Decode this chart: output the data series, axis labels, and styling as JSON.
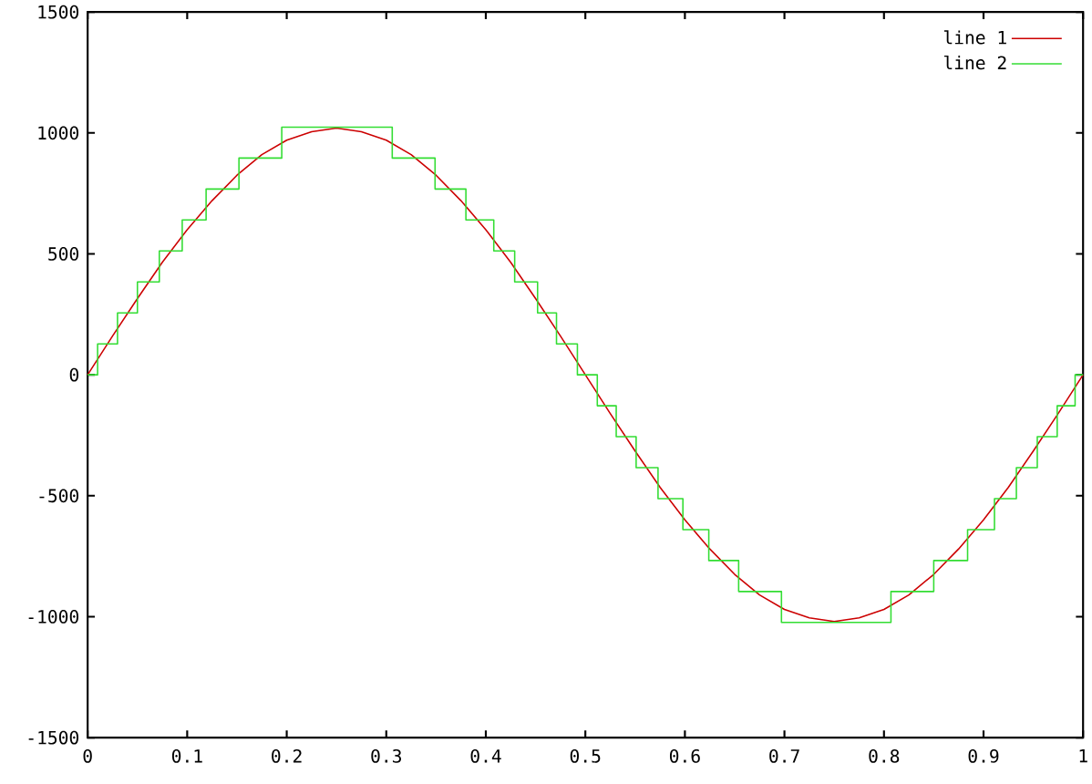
{
  "chart_data": {
    "type": "line",
    "xlim": [
      0,
      1
    ],
    "ylim": [
      -1500,
      1500
    ],
    "xticks": [
      0,
      0.1,
      0.2,
      0.3,
      0.4,
      0.5,
      0.6,
      0.7,
      0.8,
      0.9,
      1
    ],
    "yticks": [
      -1500,
      -1000,
      -500,
      0,
      500,
      1000,
      1500
    ],
    "legend": "top right",
    "series": [
      {
        "name": "line 1",
        "color": "#cc0000",
        "x": [
          0,
          0.025,
          0.05,
          0.075,
          0.1,
          0.125,
          0.15,
          0.175,
          0.2,
          0.225,
          0.25,
          0.275,
          0.3,
          0.325,
          0.35,
          0.375,
          0.4,
          0.425,
          0.45,
          0.475,
          0.5,
          0.525,
          0.55,
          0.575,
          0.6,
          0.625,
          0.65,
          0.675,
          0.7,
          0.725,
          0.75,
          0.775,
          0.8,
          0.825,
          0.85,
          0.875,
          0.9,
          0.925,
          0.95,
          0.975,
          1
        ],
        "values": [
          0,
          160,
          315,
          465,
          600,
          720,
          825,
          910,
          970,
          1005,
          1020,
          1005,
          970,
          910,
          825,
          720,
          600,
          465,
          315,
          160,
          0,
          -160,
          -315,
          -465,
          -600,
          -720,
          -825,
          -910,
          -970,
          -1005,
          -1020,
          -1005,
          -970,
          -910,
          -825,
          -720,
          -600,
          -465,
          -315,
          -160,
          0
        ]
      },
      {
        "name": "line 2",
        "type": "step",
        "color": "#33dd33",
        "x": [
          0,
          0.01,
          0.03,
          0.05,
          0.072,
          0.095,
          0.119,
          0.152,
          0.195,
          0.306,
          0.349,
          0.38,
          0.408,
          0.429,
          0.452,
          0.471,
          0.492,
          0.512,
          0.531,
          0.551,
          0.573,
          0.598,
          0.624,
          0.654,
          0.697,
          0.807,
          0.85,
          0.884,
          0.911,
          0.933,
          0.954,
          0.974,
          0.992,
          1
        ],
        "values": [
          0,
          128,
          256,
          384,
          512,
          640,
          768,
          896,
          1024,
          896,
          768,
          640,
          512,
          384,
          256,
          128,
          0,
          -128,
          -256,
          -384,
          -512,
          -640,
          -768,
          -896,
          -1024,
          -896,
          -768,
          -640,
          -512,
          -384,
          -256,
          -128,
          0,
          0
        ]
      }
    ]
  }
}
